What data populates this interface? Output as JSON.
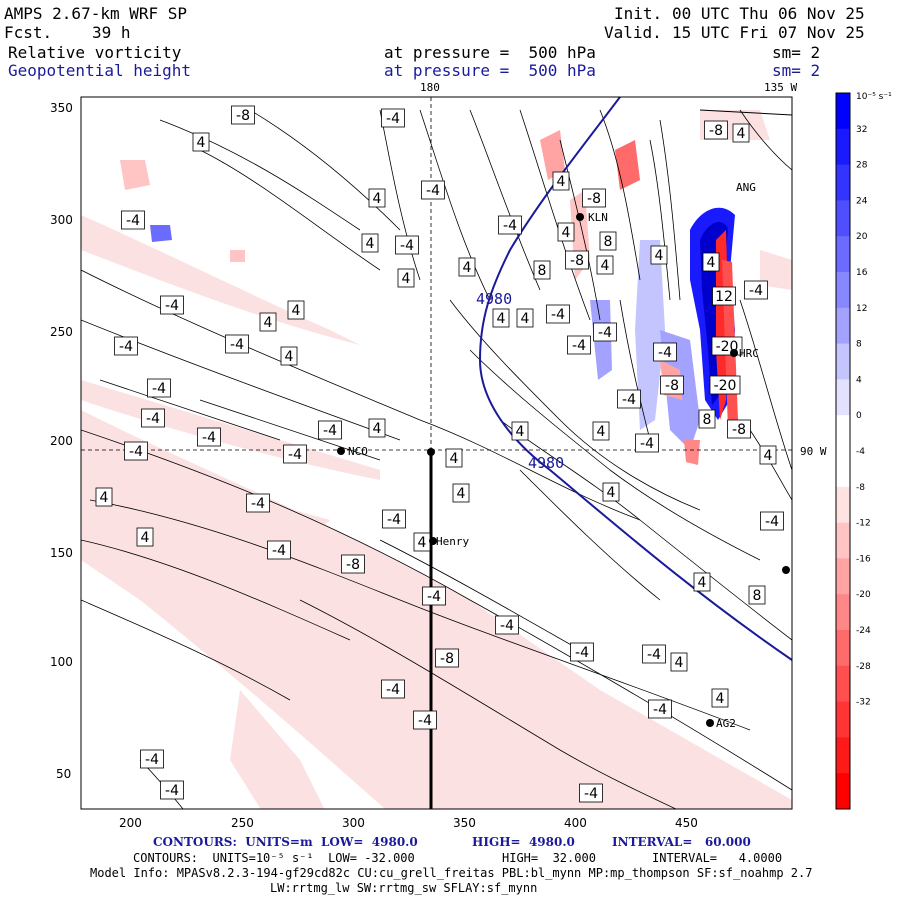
{
  "header": {
    "model": "AMPS 2.67-km WRF SP",
    "fcst_label": "Fcst.",
    "fcst_value": "39 h",
    "init_label": "Init.",
    "init_value": "00 UTC Thu 06 Nov 25",
    "valid_label": "Valid.",
    "valid_value": "15 UTC Fri 07 Nov 25",
    "field1": "Relative vorticity",
    "field1_level": "at pressure =  500 hPa",
    "field1_sm": "sm= 2",
    "field2": "Geopotential height",
    "field2_level": "at pressure =  500 hPa",
    "field2_sm": "sm= 2"
  },
  "map": {
    "top_labels": [
      "180",
      "135 W"
    ],
    "right_label": "90 W",
    "y_ticks": [
      "350",
      "300",
      "250",
      "200",
      "150",
      "100",
      "50"
    ],
    "x_ticks": [
      "200",
      "250",
      "300",
      "350",
      "400",
      "450"
    ],
    "stations": [
      {
        "name": "NCO"
      },
      {
        "name": "Henry"
      },
      {
        "name": "HRC"
      },
      {
        "name": "AG2"
      },
      {
        "name": "KLN"
      },
      {
        "name": "ANG"
      }
    ],
    "height_contour_label": "4980",
    "vorticity_labels": [
      "4",
      "-4",
      "8",
      "-8",
      "12",
      "-20",
      "-20"
    ]
  },
  "colorbar": {
    "unit_label": "10⁻⁵ s⁻¹",
    "labels": [
      "32",
      "28",
      "24",
      "20",
      "16",
      "12",
      "8",
      "4",
      "0",
      "-4",
      "-8",
      "-12",
      "-16",
      "-20",
      "-24",
      "-28",
      "-32"
    ],
    "blue_colors": [
      "#0000ff",
      "#1a1aff",
      "#3434ff",
      "#4f4fff",
      "#6b6bff",
      "#8787ff",
      "#a3a3ff",
      "#c4c4ff",
      "#e2e2ff"
    ],
    "red_colors": [
      "#ffe2e2",
      "#ffc4c4",
      "#ffa3a3",
      "#ff8787",
      "#ff6b6b",
      "#ff4f4f",
      "#ff3434",
      "#ff1a1a",
      "#ff0000"
    ]
  },
  "footer": {
    "line1_a": "CONTOURS:  UNITS=m  LOW=  4980.0",
    "line1_b": "HIGH=  4980.0",
    "line1_c": "INTERVAL=   60.000",
    "line2_a": "CONTOURS:  UNITS=10⁻⁵ s⁻¹  LOW= -32.000",
    "line2_b": "HIGH=  32.000",
    "line2_c": "INTERVAL=   4.0000",
    "model_info": "Model Info: MPASv8.2.3-194-gf29cd82c CU:cu_grell_freitas PBL:bl_mynn MP:mp_thompson SF:sf_noahmp 2.7",
    "model_info2": "LW:rrtmg_lw SW:rrtmg_sw SFLAY:sf_mynn"
  }
}
